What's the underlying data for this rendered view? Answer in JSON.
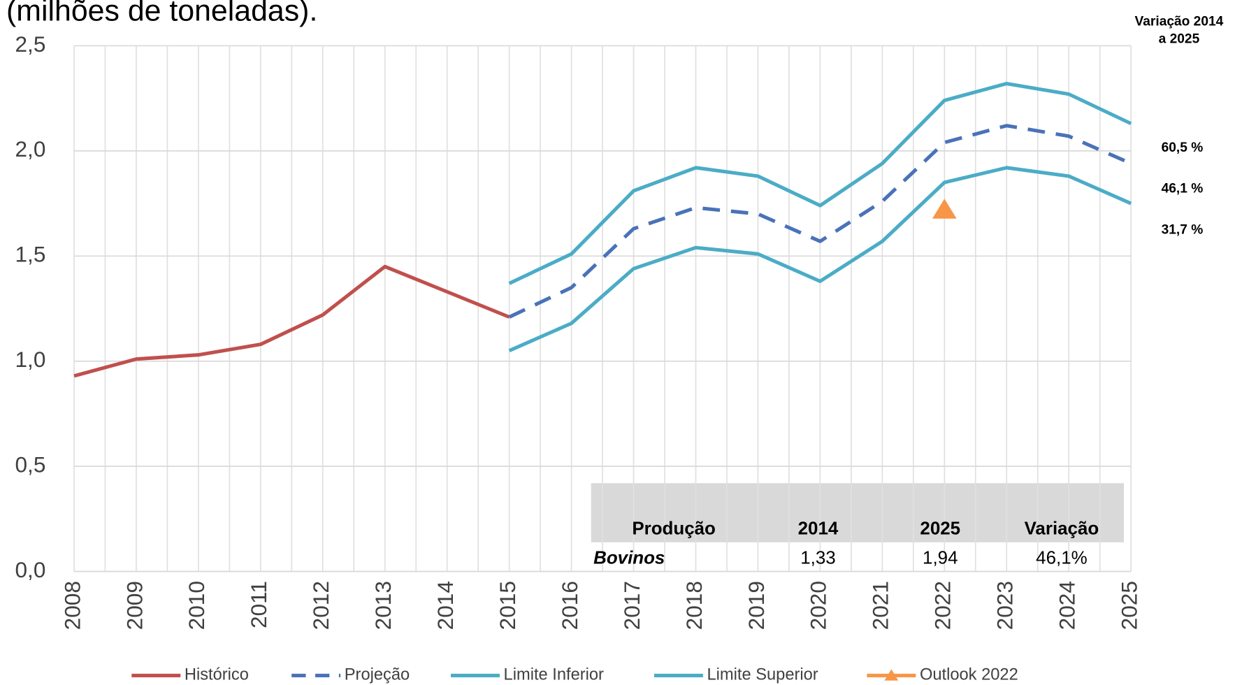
{
  "chart_data": {
    "type": "line",
    "title": "(milhões de toneladas).",
    "categories": [
      "2008",
      "2009",
      "2010",
      "2011",
      "2012",
      "2013",
      "2014",
      "2015",
      "2016",
      "2017",
      "2018",
      "2019",
      "2020",
      "2021",
      "2022",
      "2023",
      "2024",
      "2025"
    ],
    "series": [
      {
        "name": "Histórico",
        "color": "#c0504d",
        "dash": false,
        "values": [
          0.93,
          1.01,
          1.03,
          1.08,
          1.22,
          1.45,
          1.33,
          1.21,
          null,
          null,
          null,
          null,
          null,
          null,
          null,
          null,
          null,
          null
        ]
      },
      {
        "name": "Projeção",
        "color": "#4a72b8",
        "dash": true,
        "values": [
          null,
          null,
          null,
          null,
          null,
          null,
          null,
          1.21,
          1.35,
          1.63,
          1.73,
          1.7,
          1.57,
          1.76,
          2.04,
          2.12,
          2.07,
          1.94
        ]
      },
      {
        "name": "Limite Inferior",
        "color": "#4bacc6",
        "dash": false,
        "values": [
          null,
          null,
          null,
          null,
          null,
          null,
          null,
          1.05,
          1.18,
          1.44,
          1.54,
          1.51,
          1.38,
          1.57,
          1.85,
          1.92,
          1.88,
          1.75
        ]
      },
      {
        "name": "Limite Superior",
        "color": "#4bacc6",
        "dash": false,
        "values": [
          null,
          null,
          null,
          null,
          null,
          null,
          null,
          1.37,
          1.51,
          1.81,
          1.92,
          1.88,
          1.74,
          1.94,
          2.24,
          2.32,
          2.27,
          2.13
        ]
      },
      {
        "name": "Outlook 2022",
        "color": "#f79646",
        "marker": "triangle",
        "values": [
          null,
          null,
          null,
          null,
          null,
          null,
          null,
          null,
          null,
          null,
          null,
          null,
          null,
          null,
          1.72,
          null,
          null,
          null
        ]
      }
    ],
    "ylim": [
      0,
      2.5
    ],
    "yticks": [
      {
        "value": 0,
        "label": "0,0"
      },
      {
        "value": 0.5,
        "label": "0,5"
      },
      {
        "value": 1,
        "label": "1,0"
      },
      {
        "value": 1.5,
        "label": "1,5"
      },
      {
        "value": 2,
        "label": "2,0"
      },
      {
        "value": 2.5,
        "label": "2,5"
      }
    ],
    "grid": true,
    "annotations": {
      "heading": [
        "Variação 2014",
        "a 2025"
      ],
      "labels": [
        "60,5 %",
        "46,1 %",
        "31,7 %"
      ]
    }
  },
  "table": {
    "header": [
      "Produção",
      "2014",
      "2025",
      "Variação"
    ],
    "rows": [
      [
        "Bovinos",
        "1,33",
        "1,94",
        "46,1%"
      ]
    ]
  }
}
